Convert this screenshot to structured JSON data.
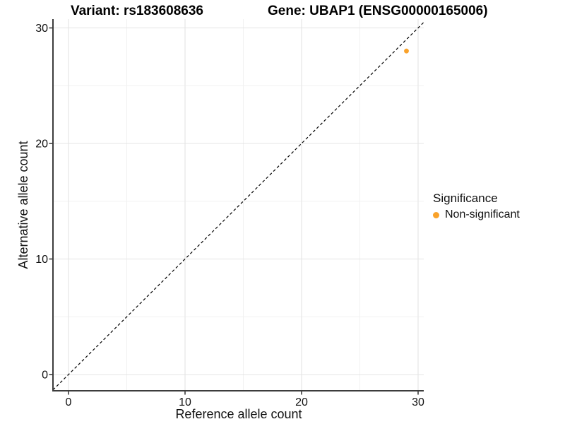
{
  "chart_data": {
    "type": "scatter",
    "title_left": "Variant: rs183608636",
    "title_right": "Gene: UBAP1 (ENSG00000165006)",
    "xlabel": "Reference allele count",
    "ylabel": "Alternative allele count",
    "x_axis": {
      "ticks": [
        0,
        10,
        20,
        30
      ],
      "minor_ticks": [
        5,
        15,
        25
      ],
      "range": [
        -1.33,
        30.48
      ]
    },
    "y_axis": {
      "ticks": [
        0,
        10,
        20,
        30
      ],
      "minor_ticks": [
        5,
        15,
        25
      ],
      "range": [
        -1.41,
        30.76
      ]
    },
    "grid": {
      "major": true,
      "minor": true,
      "major_color": "#E4E4E4",
      "minor_color": "#F1F1F1"
    },
    "reference_line": {
      "kind": "identity y=x",
      "style": "dashed",
      "color": "#000000"
    },
    "series": [
      {
        "name": "Non-significant",
        "color": "#F9A22A",
        "points": [
          {
            "x": 29,
            "y": 28
          }
        ]
      }
    ],
    "legend": {
      "title": "Significance",
      "position": "right",
      "items": [
        {
          "label": "Non-significant",
          "color": "#F9A22A"
        }
      ]
    },
    "axis_color": "#3C3C3C",
    "text_color": "#111111",
    "background": "#FFFFFF"
  }
}
